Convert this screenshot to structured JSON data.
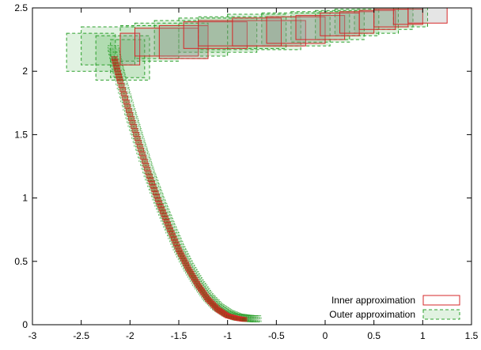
{
  "chart_data": {
    "type": "scatter",
    "title": "",
    "xlabel": "",
    "ylabel": "",
    "xlim": [
      -3,
      1.5
    ],
    "ylim": [
      0,
      2.5
    ],
    "xticks": [
      "-3",
      "-2.5",
      "-2",
      "-1.5",
      "-1",
      "-0.5",
      "0",
      "0.5",
      "1",
      "1.5"
    ],
    "yticks": [
      "0",
      "0.5",
      "1",
      "1.5",
      "2",
      "2.5"
    ],
    "xtick_values": [
      -3,
      -2.5,
      -2,
      -1.5,
      -1,
      -0.5,
      0,
      0.5,
      1,
      1.5
    ],
    "ytick_values": [
      0,
      0.5,
      1,
      1.5,
      2,
      2.5
    ],
    "grid": false,
    "legend_position": "bottom-right",
    "series": [
      {
        "name": "Inner approximation",
        "color": "#d62728",
        "fill": "rgba(150,150,150,0.25)",
        "boxes": [
          {
            "x": [
              -2.1,
              -1.9
            ],
            "y": [
              2.05,
              2.3
            ]
          },
          {
            "x": [
              -1.95,
              -1.3
            ],
            "y": [
              2.12,
              2.34
            ]
          },
          {
            "x": [
              -1.7,
              -1.2
            ],
            "y": [
              2.1,
              2.36
            ]
          },
          {
            "x": [
              -1.45,
              -0.8
            ],
            "y": [
              2.18,
              2.39
            ]
          },
          {
            "x": [
              -1.3,
              -0.2
            ],
            "y": [
              2.2,
              2.4
            ]
          },
          {
            "x": [
              -0.95,
              -0.45
            ],
            "y": [
              2.2,
              2.42
            ]
          },
          {
            "x": [
              -0.6,
              0.0
            ],
            "y": [
              2.22,
              2.43
            ]
          },
          {
            "x": [
              -0.3,
              0.2
            ],
            "y": [
              2.25,
              2.44
            ]
          },
          {
            "x": [
              -0.05,
              0.35
            ],
            "y": [
              2.28,
              2.46
            ]
          },
          {
            "x": [
              0.15,
              0.5
            ],
            "y": [
              2.3,
              2.47
            ]
          },
          {
            "x": [
              0.35,
              0.72
            ],
            "y": [
              2.33,
              2.48
            ]
          },
          {
            "x": [
              0.5,
              0.85
            ],
            "y": [
              2.35,
              2.49
            ]
          },
          {
            "x": [
              0.7,
              1.0
            ],
            "y": [
              2.37,
              2.49
            ]
          },
          {
            "x": [
              0.85,
              1.25
            ],
            "y": [
              2.38,
              2.5
            ]
          }
        ],
        "curve_x": [
          -2.16,
          -2.1,
          -2.0,
          -1.9,
          -1.8,
          -1.7,
          -1.6,
          -1.5,
          -1.4,
          -1.3,
          -1.2,
          -1.1,
          -1.0,
          -0.9,
          -0.82
        ],
        "curve_y": [
          2.1,
          1.92,
          1.66,
          1.41,
          1.17,
          0.96,
          0.77,
          0.59,
          0.44,
          0.31,
          0.2,
          0.12,
          0.07,
          0.05,
          0.04
        ]
      },
      {
        "name": "Outer approximation",
        "color": "#2ca02c",
        "fill": "rgba(44,160,44,0.14)",
        "boxes": [
          {
            "x": [
              -2.65,
              -2.15
            ],
            "y": [
              2.0,
              2.3
            ]
          },
          {
            "x": [
              -2.5,
              -1.95
            ],
            "y": [
              2.05,
              2.35
            ]
          },
          {
            "x": [
              -2.35,
              -1.8
            ],
            "y": [
              1.93,
              2.28
            ]
          },
          {
            "x": [
              -2.2,
              -1.85
            ],
            "y": [
              1.95,
              2.25
            ]
          },
          {
            "x": [
              -2.1,
              -1.5
            ],
            "y": [
              2.08,
              2.36
            ]
          },
          {
            "x": [
              -1.95,
              -1.2
            ],
            "y": [
              2.1,
              2.38
            ]
          },
          {
            "x": [
              -1.75,
              -1.0
            ],
            "y": [
              2.12,
              2.4
            ]
          },
          {
            "x": [
              -1.5,
              -0.7
            ],
            "y": [
              2.15,
              2.42
            ]
          },
          {
            "x": [
              -1.3,
              -0.25
            ],
            "y": [
              2.17,
              2.43
            ]
          },
          {
            "x": [
              -1.0,
              -0.4
            ],
            "y": [
              2.18,
              2.45
            ]
          },
          {
            "x": [
              -0.65,
              0.05
            ],
            "y": [
              2.2,
              2.46
            ]
          },
          {
            "x": [
              -0.35,
              0.25
            ],
            "y": [
              2.23,
              2.47
            ]
          },
          {
            "x": [
              -0.1,
              0.4
            ],
            "y": [
              2.25,
              2.48
            ]
          },
          {
            "x": [
              0.1,
              0.55
            ],
            "y": [
              2.28,
              2.49
            ]
          },
          {
            "x": [
              0.3,
              0.75
            ],
            "y": [
              2.3,
              2.5
            ]
          },
          {
            "x": [
              0.5,
              0.9
            ],
            "y": [
              2.33,
              2.5
            ]
          },
          {
            "x": [
              0.7,
              1.05
            ],
            "y": [
              2.35,
              2.5
            ]
          }
        ],
        "curve_x": [
          -2.17,
          -2.1,
          -2.0,
          -1.9,
          -1.8,
          -1.7,
          -1.6,
          -1.5,
          -1.4,
          -1.3,
          -1.2,
          -1.1,
          -1.0,
          -0.9,
          -0.8,
          -0.7
        ],
        "curve_y": [
          2.18,
          1.95,
          1.68,
          1.43,
          1.19,
          0.98,
          0.79,
          0.61,
          0.46,
          0.33,
          0.22,
          0.14,
          0.09,
          0.06,
          0.05,
          0.045
        ]
      }
    ]
  }
}
